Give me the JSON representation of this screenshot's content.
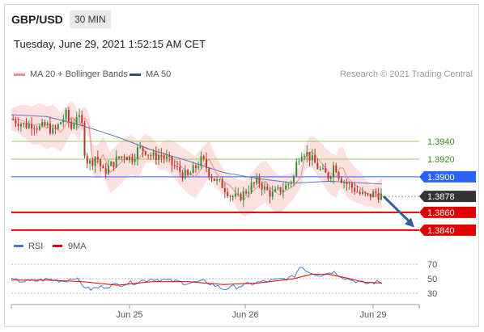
{
  "header": {
    "symbol": "GBP/USD",
    "timeframe": "30 MIN",
    "datetime": "Tuesday, June 29, 2021 1:52:15 AM CET"
  },
  "legend": {
    "items": [
      {
        "label": "MA 20 + Bollinger Bands",
        "color": "#f0908a"
      },
      {
        "label": "MA 50",
        "color": "#2b4e8c"
      }
    ],
    "credit": "Research © 2021 Trading Central"
  },
  "colors": {
    "green_line": "#9ccc65",
    "blue_line": "#2962ff",
    "red_line": "#e00000",
    "arrow": "#2f5f9e",
    "band": "#fde0e0",
    "ma20": "#f0908a",
    "ma50": "#5c7bb5",
    "up": "#3a8c3a",
    "down": "#c0392b",
    "rsi": "#4a78d0",
    "rsi_ma": "#e00000"
  },
  "chart_data": [
    {
      "type": "candlestick",
      "x_tick_labels": [
        "Jun 25",
        "Jun 26",
        "Jun 29"
      ],
      "ylim": [
        1.3828,
        1.4001
      ],
      "levels": [
        {
          "value": 1.394,
          "label": "1.3940",
          "kind": "resistance"
        },
        {
          "value": 1.392,
          "label": "1.3920",
          "kind": "resistance"
        },
        {
          "value": 1.39,
          "label": "1.3900",
          "kind": "pivot"
        },
        {
          "value": 1.386,
          "label": "1.3860",
          "kind": "support"
        },
        {
          "value": 1.384,
          "label": "1.3840",
          "kind": "support"
        }
      ],
      "last_price": {
        "value": 1.3878,
        "label": "1.3878"
      },
      "close_path": [
        [
          0,
          1.3965
        ],
        [
          4,
          1.3962
        ],
        [
          8,
          1.3958
        ],
        [
          12,
          1.396
        ],
        [
          16,
          1.3955
        ],
        [
          20,
          1.3958
        ],
        [
          24,
          1.395
        ],
        [
          28,
          1.3962
        ],
        [
          31,
          1.397
        ],
        [
          34,
          1.3955
        ],
        [
          37,
          1.397
        ],
        [
          40,
          1.3958
        ],
        [
          42,
          1.392
        ],
        [
          45,
          1.3915
        ],
        [
          48,
          1.3925
        ],
        [
          52,
          1.3905
        ],
        [
          56,
          1.3912
        ],
        [
          60,
          1.392
        ],
        [
          64,
          1.3925
        ],
        [
          68,
          1.392
        ],
        [
          72,
          1.3932
        ],
        [
          76,
          1.393
        ],
        [
          80,
          1.3922
        ],
        [
          84,
          1.3925
        ],
        [
          88,
          1.392
        ],
        [
          92,
          1.3912
        ],
        [
          96,
          1.3905
        ],
        [
          100,
          1.39
        ],
        [
          104,
          1.391
        ],
        [
          108,
          1.392
        ],
        [
          112,
          1.3905
        ],
        [
          116,
          1.3895
        ],
        [
          120,
          1.389
        ],
        [
          124,
          1.388
        ],
        [
          128,
          1.3875
        ],
        [
          132,
          1.3882
        ],
        [
          136,
          1.389
        ],
        [
          140,
          1.3895
        ],
        [
          144,
          1.3885
        ],
        [
          148,
          1.388
        ],
        [
          152,
          1.3885
        ],
        [
          156,
          1.389
        ],
        [
          160,
          1.39
        ],
        [
          162,
          1.392
        ],
        [
          165,
          1.393
        ],
        [
          168,
          1.3925
        ],
        [
          172,
          1.3915
        ],
        [
          176,
          1.3905
        ],
        [
          180,
          1.39
        ],
        [
          183,
          1.3915
        ],
        [
          186,
          1.39
        ],
        [
          190,
          1.3892
        ],
        [
          194,
          1.3887
        ],
        [
          198,
          1.388
        ],
        [
          202,
          1.3878
        ],
        [
          206,
          1.3882
        ],
        [
          210,
          1.3878
        ]
      ],
      "ma50_path": [
        [
          0,
          1.397
        ],
        [
          20,
          1.3968
        ],
        [
          40,
          1.3958
        ],
        [
          60,
          1.3945
        ],
        [
          80,
          1.393
        ],
        [
          100,
          1.3918
        ],
        [
          120,
          1.3905
        ],
        [
          140,
          1.3898
        ],
        [
          160,
          1.3893
        ],
        [
          180,
          1.3895
        ],
        [
          200,
          1.3893
        ],
        [
          210,
          1.3892
        ]
      ],
      "band_width": 0.002
    },
    {
      "type": "line",
      "legend": [
        "RSI",
        "9MA"
      ],
      "y_tick_labels": [
        "70",
        "50",
        "30"
      ],
      "ylim": [
        20,
        80
      ],
      "rsi_path": [
        [
          0,
          48
        ],
        [
          10,
          46
        ],
        [
          20,
          49
        ],
        [
          30,
          47
        ],
        [
          36,
          52
        ],
        [
          40,
          42
        ],
        [
          44,
          35
        ],
        [
          50,
          38
        ],
        [
          60,
          42
        ],
        [
          70,
          45
        ],
        [
          80,
          50
        ],
        [
          90,
          47
        ],
        [
          100,
          44
        ],
        [
          110,
          46
        ],
        [
          120,
          36
        ],
        [
          130,
          40
        ],
        [
          140,
          45
        ],
        [
          150,
          48
        ],
        [
          160,
          52
        ],
        [
          164,
          68
        ],
        [
          168,
          60
        ],
        [
          175,
          55
        ],
        [
          182,
          60
        ],
        [
          190,
          50
        ],
        [
          195,
          47
        ],
        [
          200,
          43
        ],
        [
          205,
          45
        ],
        [
          210,
          45
        ]
      ],
      "ma_path": [
        [
          0,
          48
        ],
        [
          20,
          48
        ],
        [
          40,
          46
        ],
        [
          60,
          41
        ],
        [
          80,
          46
        ],
        [
          100,
          46
        ],
        [
          120,
          42
        ],
        [
          140,
          44
        ],
        [
          160,
          50
        ],
        [
          170,
          56
        ],
        [
          180,
          56
        ],
        [
          190,
          51
        ],
        [
          200,
          45
        ],
        [
          210,
          44
        ]
      ]
    }
  ]
}
